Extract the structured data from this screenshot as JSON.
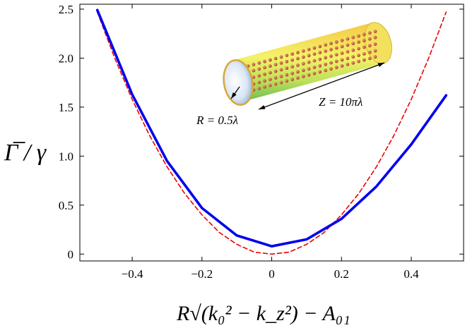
{
  "chart_data": {
    "type": "line",
    "title": "",
    "xlabel": "R√(k₀² − k_z²) − A₀₁",
    "ylabel": "Γ̅ / γ",
    "xlim": [
      -0.55,
      0.55
    ],
    "ylim": [
      -0.07,
      2.55
    ],
    "xticks": [
      -0.4,
      -0.2,
      0,
      0.2,
      0.4
    ],
    "xtick_labels": [
      "−0.4",
      "−0.2",
      "0",
      "0.2",
      "0.4"
    ],
    "yticks": [
      0,
      0.5,
      1.0,
      1.5,
      2.0,
      2.5
    ],
    "ytick_labels": [
      "0",
      "0.5",
      "1.0",
      "1.5",
      "2.0",
      "2.5"
    ],
    "grid": false,
    "legend": "none",
    "series": [
      {
        "style": "solid",
        "color": "#0000ee",
        "x": [
          -0.5,
          -0.4,
          -0.3,
          -0.2,
          -0.1,
          0.0,
          0.1,
          0.2,
          0.3,
          0.4,
          0.5
        ],
        "y": [
          2.49,
          1.63,
          0.95,
          0.47,
          0.19,
          0.08,
          0.15,
          0.36,
          0.69,
          1.12,
          1.62
        ]
      },
      {
        "style": "dashed",
        "color": "#ee0000",
        "x": [
          -0.5,
          -0.45,
          -0.4,
          -0.35,
          -0.3,
          -0.25,
          -0.2,
          -0.15,
          -0.1,
          -0.05,
          0.0,
          0.05,
          0.1,
          0.15,
          0.2,
          0.25,
          0.3,
          0.35,
          0.4,
          0.45,
          0.5
        ],
        "y": [
          2.47,
          2.0,
          1.58,
          1.21,
          0.89,
          0.62,
          0.4,
          0.22,
          0.1,
          0.02,
          0.0,
          0.02,
          0.1,
          0.22,
          0.4,
          0.62,
          0.89,
          1.21,
          1.58,
          2.0,
          2.47
        ]
      }
    ],
    "inset": {
      "label_radius": "R = 0.5λ",
      "label_length": "Z = 10πλ"
    }
  }
}
